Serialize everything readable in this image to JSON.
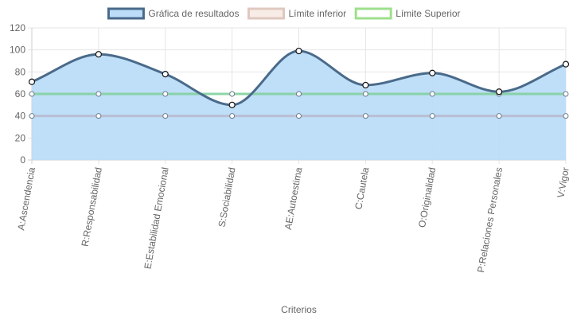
{
  "chart_data": {
    "type": "line",
    "title": "",
    "xlabel": "Criterios",
    "ylabel": "",
    "ylim": [
      0,
      120
    ],
    "y_ticks": [
      0,
      20,
      40,
      60,
      80,
      100,
      120
    ],
    "grid": true,
    "legend_position": "top",
    "categories": [
      "A:Ascendencia",
      "R:Responsabilidad",
      "E:Estabilidad Emocional",
      "S:Sociabilidad",
      "AE:Autoestima",
      "C:Cautela",
      "O:Originalidad",
      "P:Relaciones Personales",
      "V:Vigor"
    ],
    "series": [
      {
        "name": "Gráfica de resultados",
        "values": [
          71,
          96,
          78,
          50,
          99,
          68,
          79,
          62,
          87
        ],
        "line_color": "#4a6a8a",
        "fill_color": "#bcdcf8",
        "filled": true
      },
      {
        "name": "Límite inferior",
        "values": [
          40,
          40,
          40,
          40,
          40,
          40,
          40,
          40,
          40
        ],
        "line_color": "#b8b8cc",
        "legend_fill": "#f8ece6",
        "legend_border": "#e0c8c0",
        "filled": false
      },
      {
        "name": "Límite Superior",
        "values": [
          60,
          60,
          60,
          60,
          60,
          60,
          60,
          60,
          60
        ],
        "line_color": "#7ed09a",
        "legend_fill": "#ffffff",
        "legend_border": "#9ee08c",
        "filled": false
      }
    ]
  }
}
